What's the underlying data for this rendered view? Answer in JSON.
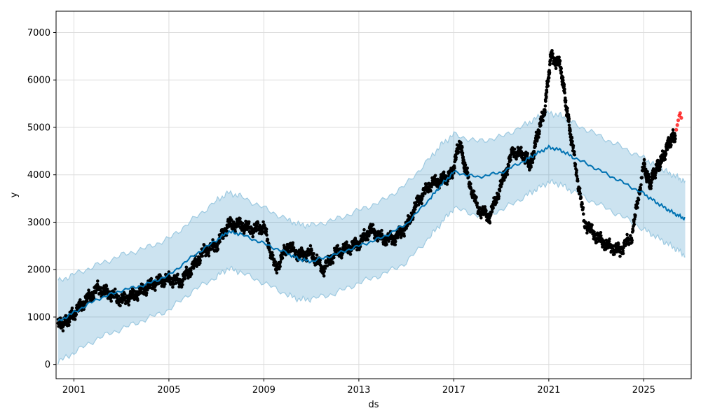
{
  "chart_data": {
    "type": "scatter",
    "title": "",
    "xlabel": "ds",
    "ylabel": "y",
    "xlim": [
      "2000-04-01",
      "2026-12-31"
    ],
    "ylim": [
      -300,
      7450
    ],
    "x_ticks": [
      "2001",
      "2005",
      "2009",
      "2013",
      "2017",
      "2021",
      "2025"
    ],
    "y_ticks": [
      0,
      1000,
      2000,
      3000,
      4000,
      5000,
      6000,
      7000
    ],
    "grid": true,
    "colors": {
      "observed": "#000000",
      "forecast": "#0072B2",
      "uncertainty_fill": "#0072B2",
      "uncertainty_edge": "#9ecae1",
      "recent_points": "#ff0000",
      "grid": "#dddddd"
    },
    "series": [
      {
        "kind": "forecast",
        "x": [
          "2000-05-01",
          "2001-01-01",
          "2002-01-01",
          "2003-01-01",
          "2004-01-01",
          "2005-01-01",
          "2006-01-01",
          "2007-01-01",
          "2007-07-01",
          "2008-01-01",
          "2009-01-01",
          "2010-01-01",
          "2010-07-01",
          "2011-01-01",
          "2012-01-01",
          "2013-01-01",
          "2014-01-01",
          "2015-01-01",
          "2016-01-01",
          "2016-07-01",
          "2017-01-01",
          "2018-01-01",
          "2019-01-01",
          "2020-01-01",
          "2020-07-01",
          "2021-01-01",
          "2021-07-01",
          "2022-01-01",
          "2023-01-01",
          "2024-01-01",
          "2025-01-01",
          "2025-07-01",
          "2026-01-01",
          "2026-06-01",
          "2026-09-30"
        ],
        "y": [
          900,
          1100,
          1380,
          1560,
          1680,
          1880,
          2280,
          2620,
          2800,
          2750,
          2550,
          2340,
          2220,
          2170,
          2320,
          2500,
          2680,
          2960,
          3500,
          3800,
          4060,
          3950,
          4050,
          4300,
          4450,
          4580,
          4520,
          4380,
          4130,
          3870,
          3600,
          3430,
          3270,
          3150,
          3070
        ]
      },
      {
        "kind": "uncertainty_upper",
        "x": [
          "2000-05-01",
          "2001-01-01",
          "2002-01-01",
          "2003-01-01",
          "2004-01-01",
          "2005-01-01",
          "2006-01-01",
          "2007-01-01",
          "2007-07-01",
          "2008-01-01",
          "2009-01-01",
          "2010-01-01",
          "2010-07-01",
          "2011-01-01",
          "2012-01-01",
          "2013-01-01",
          "2014-01-01",
          "2015-01-01",
          "2016-01-01",
          "2016-07-01",
          "2017-01-01",
          "2018-01-01",
          "2019-01-01",
          "2020-01-01",
          "2020-07-01",
          "2021-01-01",
          "2021-07-01",
          "2022-01-01",
          "2023-01-01",
          "2024-01-01",
          "2025-01-01",
          "2025-07-01",
          "2026-01-01",
          "2026-06-01",
          "2026-09-30"
        ],
        "y": [
          1750,
          1900,
          2100,
          2300,
          2450,
          2650,
          3050,
          3450,
          3620,
          3550,
          3300,
          3050,
          2950,
          2930,
          3050,
          3250,
          3450,
          3800,
          4350,
          4650,
          4850,
          4700,
          4800,
          5050,
          5200,
          5300,
          5250,
          5100,
          4850,
          4600,
          4350,
          4200,
          4050,
          3950,
          3850
        ]
      },
      {
        "kind": "uncertainty_lower",
        "x": [
          "2000-05-01",
          "2001-01-01",
          "2002-01-01",
          "2003-01-01",
          "2004-01-01",
          "2005-01-01",
          "2006-01-01",
          "2007-01-01",
          "2007-07-01",
          "2008-01-01",
          "2009-01-01",
          "2010-01-01",
          "2010-07-01",
          "2011-01-01",
          "2012-01-01",
          "2013-01-01",
          "2014-01-01",
          "2015-01-01",
          "2016-01-01",
          "2016-07-01",
          "2017-01-01",
          "2018-01-01",
          "2019-01-01",
          "2020-01-01",
          "2020-07-01",
          "2021-01-01",
          "2021-07-01",
          "2022-01-01",
          "2023-01-01",
          "2024-01-01",
          "2025-01-01",
          "2025-07-01",
          "2026-01-01",
          "2026-06-01",
          "2026-09-30"
        ],
        "y": [
          50,
          250,
          550,
          750,
          950,
          1150,
          1550,
          1850,
          2030,
          1950,
          1720,
          1470,
          1370,
          1380,
          1500,
          1720,
          1900,
          2150,
          2700,
          3000,
          3300,
          3150,
          3250,
          3550,
          3700,
          3850,
          3800,
          3650,
          3400,
          3150,
          2850,
          2700,
          2550,
          2420,
          2300
        ]
      },
      {
        "kind": "observed",
        "x": [
          "2000-05-01",
          "2000-09-01",
          "2001-01-01",
          "2001-07-01",
          "2002-01-01",
          "2002-07-01",
          "2003-01-01",
          "2003-07-01",
          "2004-01-01",
          "2004-07-01",
          "2005-01-01",
          "2005-07-01",
          "2006-01-01",
          "2006-07-01",
          "2007-01-01",
          "2007-07-01",
          "2008-01-01",
          "2008-07-01",
          "2009-01-01",
          "2009-07-01",
          "2010-01-01",
          "2010-07-01",
          "2011-01-01",
          "2011-07-01",
          "2012-01-01",
          "2012-07-01",
          "2013-01-01",
          "2013-07-01",
          "2014-01-01",
          "2014-07-01",
          "2015-01-01",
          "2015-07-01",
          "2016-01-01",
          "2016-07-01",
          "2016-12-01",
          "2017-04-01",
          "2017-07-01",
          "2018-01-01",
          "2018-07-01",
          "2019-01-01",
          "2019-07-01",
          "2020-01-01",
          "2020-04-01",
          "2020-07-01",
          "2020-11-01",
          "2021-02-01",
          "2021-07-01",
          "2021-10-01",
          "2022-01-01",
          "2022-07-01",
          "2023-01-01",
          "2023-07-01",
          "2024-01-01",
          "2024-07-01",
          "2025-01-01",
          "2025-04-01",
          "2025-07-01",
          "2025-10-01",
          "2026-02-01",
          "2026-05-01"
        ],
        "y": [
          830,
          900,
          1080,
          1350,
          1600,
          1500,
          1350,
          1450,
          1600,
          1750,
          1800,
          1750,
          2050,
          2400,
          2500,
          2950,
          2950,
          2850,
          2900,
          2000,
          2500,
          2300,
          2350,
          2000,
          2350,
          2450,
          2550,
          2850,
          2650,
          2650,
          2900,
          3450,
          3800,
          3900,
          4000,
          4700,
          4100,
          3300,
          3100,
          3800,
          4500,
          4400,
          4200,
          4800,
          5400,
          6500,
          6300,
          5400,
          4600,
          3000,
          2700,
          2500,
          2400,
          2700,
          4200,
          3800,
          4100,
          4300,
          4700,
          4850
        ]
      },
      {
        "kind": "recent",
        "x": [
          "2026-05-15",
          "2026-06-01",
          "2026-06-15",
          "2026-07-01",
          "2026-07-15",
          "2026-08-01"
        ],
        "y": [
          4950,
          5050,
          5150,
          5250,
          5300,
          5200
        ]
      }
    ]
  }
}
